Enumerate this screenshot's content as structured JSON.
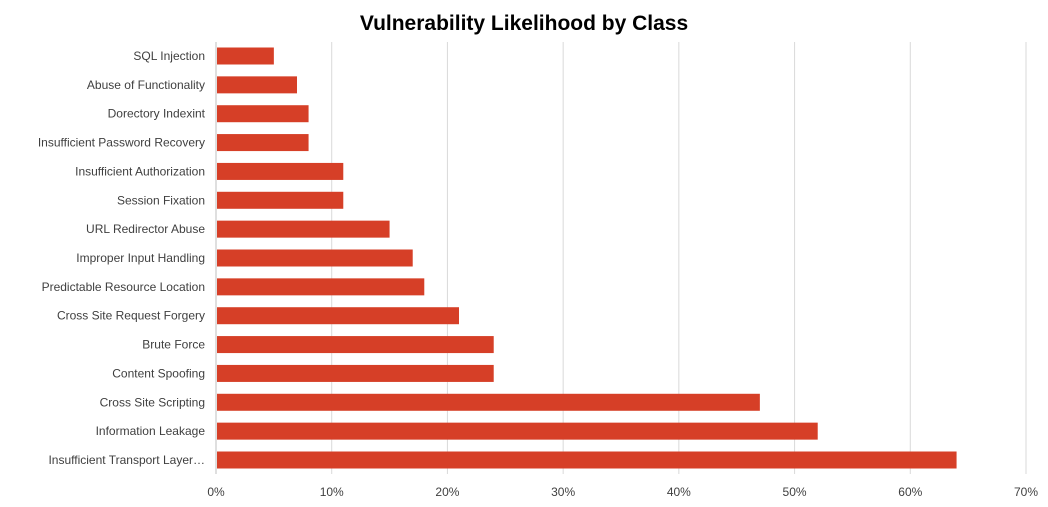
{
  "chart_data": {
    "type": "bar",
    "orientation": "horizontal",
    "title": "Vulnerability Likelihood by Class",
    "categories": [
      "SQL Injection",
      "Abuse of Functionality",
      "Dorectory Indexint",
      "Insufficient Password Recovery",
      "Insufficient Authorization",
      "Session Fixation",
      "URL Redirector Abuse",
      "Improper Input Handling",
      "Predictable Resource Location",
      "Cross Site Request Forgery",
      "Brute Force",
      "Content Spoofing",
      "Cross Site Scripting",
      "Information Leakage",
      "Insufficient Transport Layer…"
    ],
    "values": [
      5,
      7,
      8,
      8,
      11,
      11,
      15,
      17,
      18,
      21,
      24,
      24,
      47,
      52,
      64
    ],
    "value_unit": "%",
    "xlim": [
      0,
      70
    ],
    "x_ticks": [
      "0%",
      "10%",
      "20%",
      "30%",
      "40%",
      "50%",
      "60%",
      "70%"
    ],
    "grid": "vertical",
    "legend": "none",
    "colors": {
      "bar": "#d63f27",
      "grid": "#d9d9d9",
      "axis": "#bfbfbf"
    }
  }
}
